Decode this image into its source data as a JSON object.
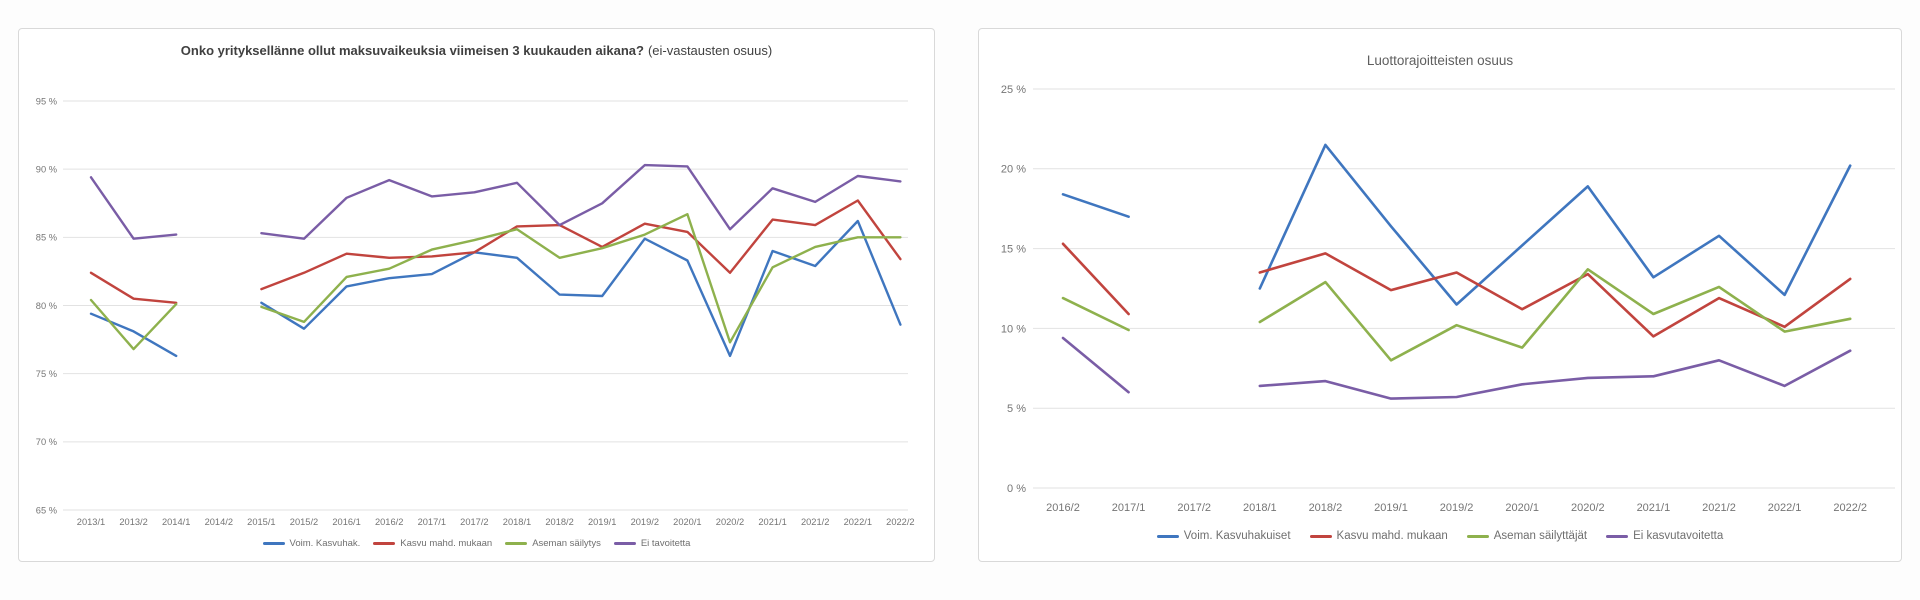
{
  "page": {
    "background": "#ffffff",
    "panel_border": "#d9d9d9",
    "grid_color": "#e2e2e2",
    "tick_color": "#757575"
  },
  "chart_data": [
    {
      "type": "line",
      "title": "Onko yrityksellänne ollut maksuvaikeuksia viimeisen 3 kuukauden aikana? (ei-vastausten osuus)",
      "title_bold": "Onko yrityksellänne ollut maksuvaikeuksia viimeisen 3 kuukauden aikana?",
      "title_normal": "(ei-vastausten osuus)",
      "xlabel": "",
      "ylabel": "",
      "grid": true,
      "legend_position": "bottom",
      "ylim": [
        65,
        95
      ],
      "yticks": [
        65,
        70,
        75,
        80,
        85,
        90,
        95
      ],
      "ytick_suffix": " %",
      "note": "no data at 2014/2 (gap in all series)",
      "categories": [
        "2013/1",
        "2013/2",
        "2014/1",
        "2014/2",
        "2015/1",
        "2015/2",
        "2016/1",
        "2016/2",
        "2017/1",
        "2017/2",
        "2018/1",
        "2018/2",
        "2019/1",
        "2019/2",
        "2020/1",
        "2020/2",
        "2021/1",
        "2021/2",
        "2022/1",
        "2022/2"
      ],
      "series": [
        {
          "name": "Voim. Kasvuhak.",
          "color": "#3f76bf",
          "values": [
            79.4,
            78.1,
            76.3,
            null,
            80.2,
            78.3,
            81.4,
            82.0,
            82.3,
            83.9,
            83.5,
            80.8,
            80.7,
            84.9,
            83.3,
            76.3,
            84.0,
            82.9,
            86.2,
            78.6
          ]
        },
        {
          "name": "Kasvu mahd. mukaan",
          "color": "#c1443e",
          "values": [
            82.4,
            80.5,
            80.2,
            null,
            81.2,
            82.4,
            83.8,
            83.5,
            83.6,
            83.9,
            85.8,
            85.9,
            84.3,
            86.0,
            85.4,
            82.4,
            86.3,
            85.9,
            87.7,
            83.4
          ]
        },
        {
          "name": "Aseman säilytys",
          "color": "#8eb14d",
          "values": [
            80.4,
            76.8,
            80.1,
            null,
            79.9,
            78.8,
            82.1,
            82.7,
            84.1,
            84.8,
            85.6,
            83.5,
            84.2,
            85.2,
            86.7,
            77.3,
            82.8,
            84.3,
            85.0,
            85.0
          ]
        },
        {
          "name": "Ei tavoitetta",
          "color": "#7a5da6",
          "values": [
            89.4,
            84.9,
            85.2,
            null,
            85.3,
            84.9,
            87.9,
            89.2,
            88.0,
            88.3,
            89.0,
            85.9,
            87.5,
            90.3,
            90.2,
            85.6,
            88.6,
            87.6,
            89.5,
            89.1
          ]
        }
      ]
    },
    {
      "type": "line",
      "title": "Luottorajoitteisten osuus",
      "xlabel": "",
      "ylabel": "",
      "grid": true,
      "legend_position": "bottom",
      "ylim": [
        0,
        25
      ],
      "yticks": [
        0,
        5,
        10,
        15,
        20,
        25
      ],
      "ytick_suffix": " %",
      "note": "no data at 2017/2 (gap in all series)",
      "categories": [
        "2016/2",
        "2017/1",
        "2017/2",
        "2018/1",
        "2018/2",
        "2019/1",
        "2019/2",
        "2020/1",
        "2020/2",
        "2021/1",
        "2021/2",
        "2022/1",
        "2022/2"
      ],
      "series": [
        {
          "name": "Voim. Kasvuhakuiset",
          "color": "#3f76bf",
          "values": [
            18.4,
            17.0,
            null,
            12.5,
            21.5,
            16.4,
            11.5,
            15.2,
            18.9,
            13.2,
            15.8,
            12.1,
            20.2
          ]
        },
        {
          "name": "Kasvu mahd. mukaan",
          "color": "#c1443e",
          "values": [
            15.3,
            10.9,
            null,
            13.5,
            14.7,
            12.4,
            13.5,
            11.2,
            13.4,
            9.5,
            11.9,
            10.1,
            13.1
          ]
        },
        {
          "name": "Aseman säilyttäjät",
          "color": "#8eb14d",
          "values": [
            11.9,
            9.9,
            null,
            10.4,
            12.9,
            8.0,
            10.2,
            8.8,
            13.7,
            10.9,
            12.6,
            9.8,
            10.6
          ]
        },
        {
          "name": "Ei kasvutavoitetta",
          "color": "#7a5da6",
          "values": [
            9.4,
            6.0,
            null,
            6.4,
            6.7,
            5.6,
            5.7,
            6.5,
            6.9,
            7.0,
            8.0,
            6.4,
            8.6
          ]
        }
      ]
    }
  ]
}
